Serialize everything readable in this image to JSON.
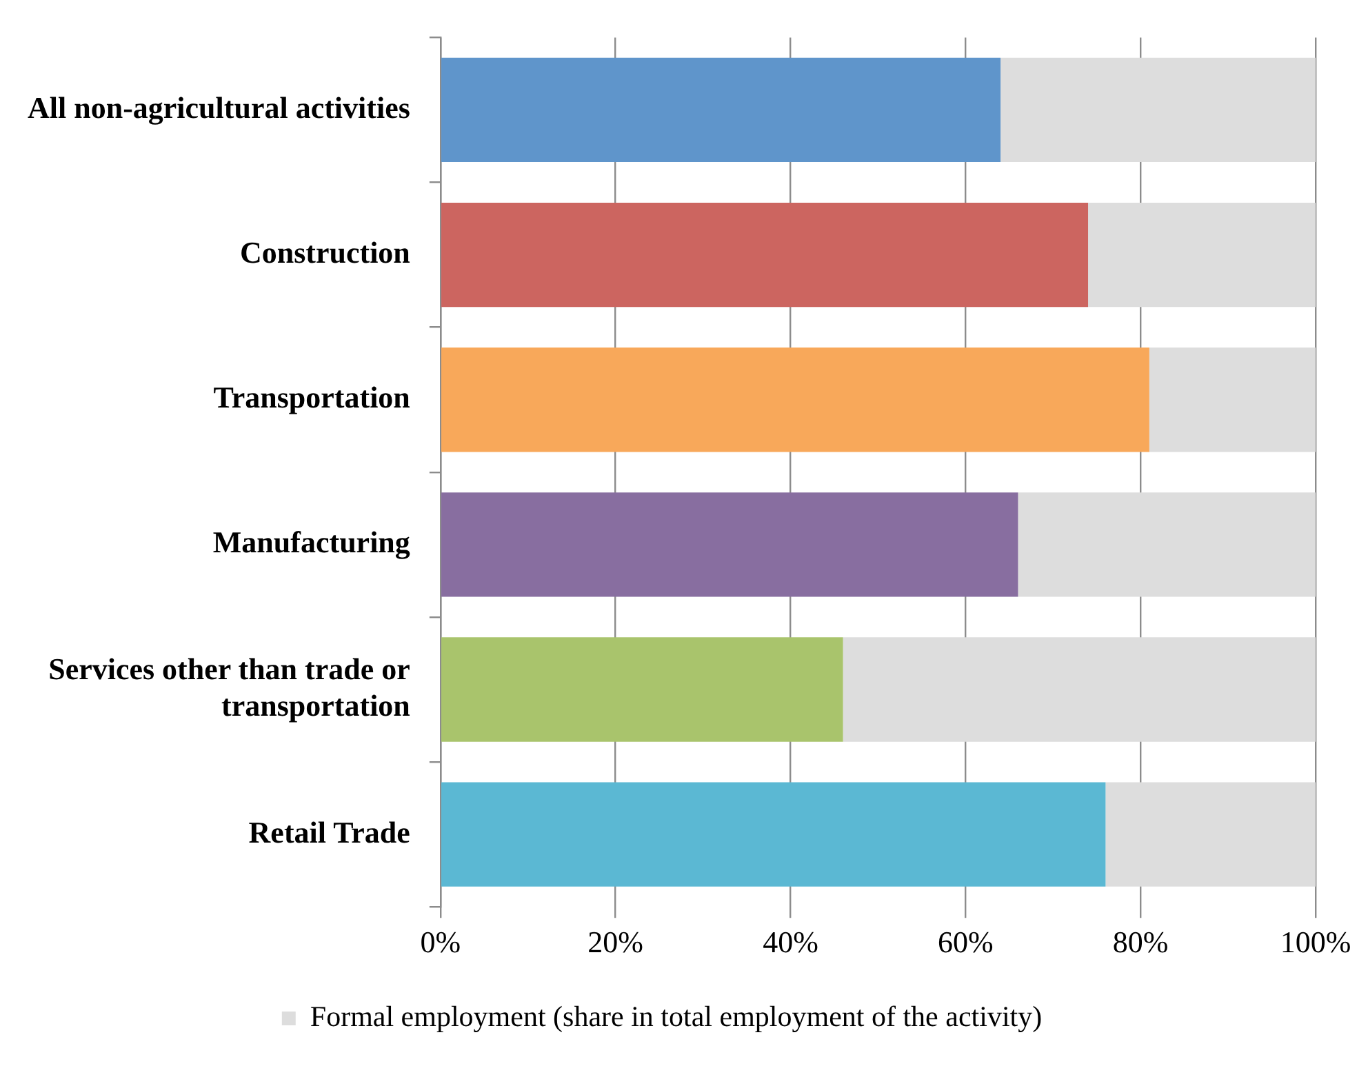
{
  "chart_data": {
    "type": "bar",
    "orientation": "horizontal",
    "stacked": true,
    "categories": [
      "All non-agricultural activities",
      "Construction",
      "Transportation",
      "Manufacturing",
      "Services other than trade or transportation",
      "Retail Trade"
    ],
    "series": [
      {
        "colors": [
          "#5f95cb",
          "#cc6560",
          "#f8a85a",
          "#886ea0",
          "#a9c46c",
          "#5bb8d3"
        ],
        "values": [
          64,
          74,
          81,
          66,
          46,
          76
        ]
      },
      {
        "name": "Formal employment (share in total employment of the activity)",
        "color": "#dddddd",
        "values": [
          36,
          26,
          19,
          34,
          54,
          24
        ]
      }
    ],
    "xlim": [
      0,
      100
    ],
    "xticks": [
      {
        "value": 0,
        "label": "0%"
      },
      {
        "value": 20,
        "label": "20%"
      },
      {
        "value": 40,
        "label": "40%"
      },
      {
        "value": 60,
        "label": "60%"
      },
      {
        "value": 80,
        "label": "80%"
      },
      {
        "value": 100,
        "label": "100%"
      }
    ],
    "grid": "x",
    "legend": "bottom"
  }
}
